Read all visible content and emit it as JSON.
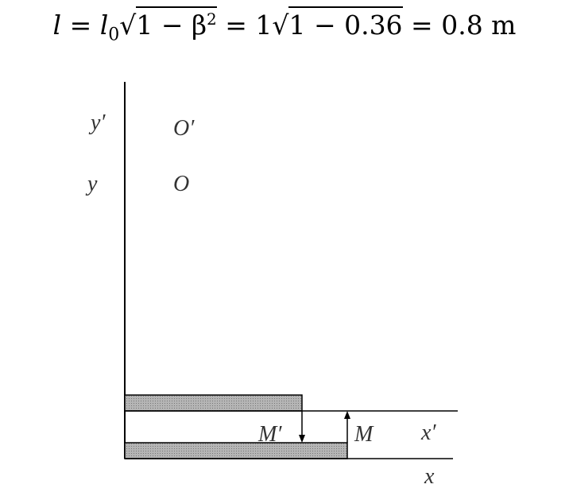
{
  "equation": {
    "lhs": "l",
    "eq1_pre": "l",
    "eq1_sub": "0",
    "eq1_rad": "1 − β",
    "eq1_sup": "2",
    "eq2_coef": "1",
    "eq2_rad": "1 − 0.36",
    "result": "0.8 m"
  },
  "diagram": {
    "labels": {
      "y_prime": "y′",
      "o_prime": "O′",
      "y": "y",
      "o": "O",
      "m_prime": "M′",
      "m": "M",
      "x_prime": "x′",
      "x": "x"
    },
    "bar_fill": "#9a9a9a"
  }
}
